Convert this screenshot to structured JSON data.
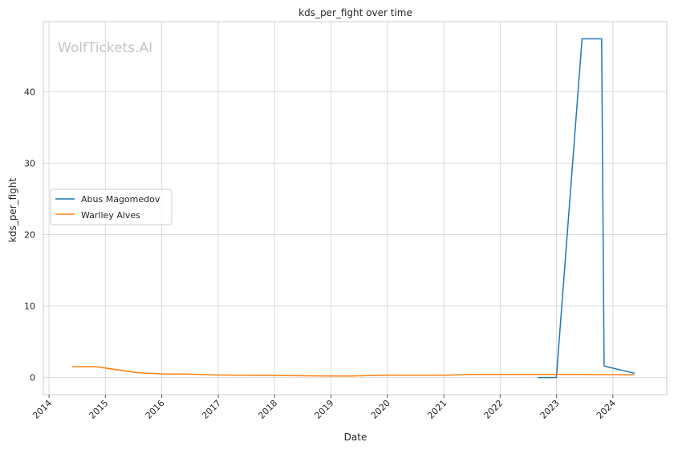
{
  "chart_data": {
    "type": "line",
    "title": "kds_per_fight over time",
    "xlabel": "Date",
    "ylabel": "kds_per_fight",
    "watermark": "WolfTickets.AI",
    "x_ticks": [
      "2014",
      "2015",
      "2016",
      "2017",
      "2018",
      "2019",
      "2020",
      "2021",
      "2022",
      "2023",
      "2024"
    ],
    "y_ticks": [
      "0",
      "10",
      "20",
      "30",
      "40"
    ],
    "xlim": [
      "2013-11-25",
      "2024-12-15"
    ],
    "ylim": [
      -2.4,
      49.8
    ],
    "grid": true,
    "legend_position": "center-left",
    "series": [
      {
        "name": "Abus Magomedov",
        "color": "#1f77b4",
        "points": [
          {
            "x": "2022-09-01",
            "y": 0.0
          },
          {
            "x": "2022-12-31",
            "y": 0.0
          },
          {
            "x": "2023-06-15",
            "y": 47.4
          },
          {
            "x": "2023-10-20",
            "y": 47.4
          },
          {
            "x": "2023-11-05",
            "y": 1.6
          },
          {
            "x": "2024-05-20",
            "y": 0.6
          }
        ]
      },
      {
        "name": "Warlley Alves",
        "color": "#ff7f0e",
        "points": [
          {
            "x": "2014-05-31",
            "y": 1.5
          },
          {
            "x": "2014-11-08",
            "y": 1.5
          },
          {
            "x": "2015-08-01",
            "y": 0.65
          },
          {
            "x": "2016-01-30",
            "y": 0.5
          },
          {
            "x": "2016-06-04",
            "y": 0.48
          },
          {
            "x": "2016-12-30",
            "y": 0.35
          },
          {
            "x": "2017-09-16",
            "y": 0.3
          },
          {
            "x": "2018-06-01",
            "y": 0.25
          },
          {
            "x": "2018-12-08",
            "y": 0.22
          },
          {
            "x": "2019-05-18",
            "y": 0.22
          },
          {
            "x": "2019-12-21",
            "y": 0.33
          },
          {
            "x": "2020-06-13",
            "y": 0.33
          },
          {
            "x": "2021-01-20",
            "y": 0.33
          },
          {
            "x": "2021-06-26",
            "y": 0.43
          },
          {
            "x": "2022-07-16",
            "y": 0.43
          },
          {
            "x": "2023-06-03",
            "y": 0.43
          },
          {
            "x": "2023-11-18",
            "y": 0.4
          },
          {
            "x": "2024-05-20",
            "y": 0.4
          }
        ]
      }
    ]
  }
}
